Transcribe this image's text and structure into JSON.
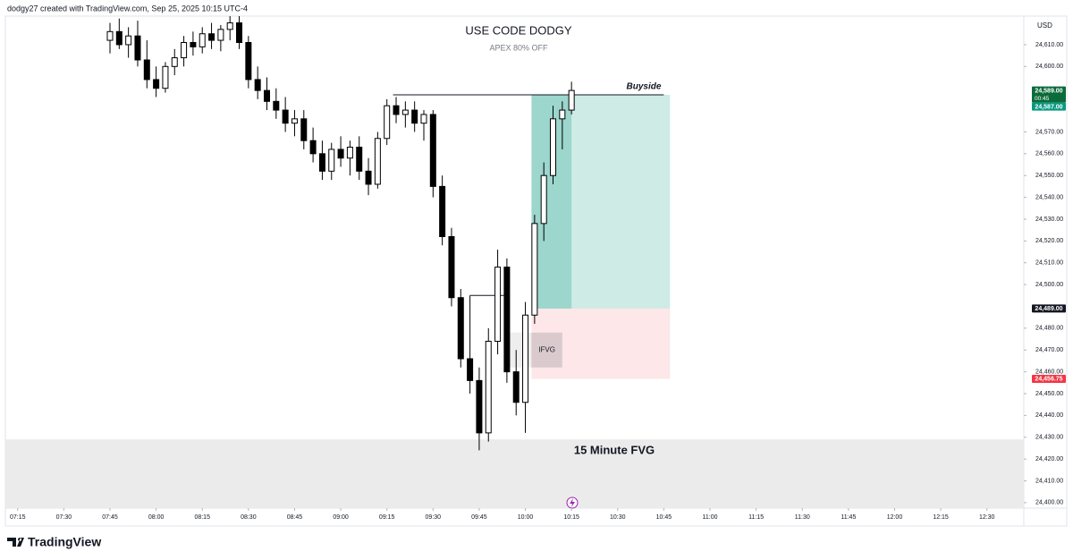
{
  "header": "dodgy27 created with TradingView.com, Sep 25, 2025 10:15 UTC-4",
  "footer": "TradingView",
  "chart_data": {
    "type": "candlestick",
    "title": "USE CODE DODGY",
    "subtitle": "APEX 80% OFF",
    "currency": "USD",
    "up_color": "#ffffff",
    "down_color": "#000000",
    "x": [
      "07:45",
      "07:48",
      "07:51",
      "07:54",
      "07:57",
      "08:00",
      "08:03",
      "08:06",
      "08:09",
      "08:12",
      "08:15",
      "08:18",
      "08:21",
      "08:24",
      "08:27",
      "08:30",
      "08:33",
      "08:36",
      "08:39",
      "08:42",
      "08:45",
      "08:48",
      "08:51",
      "08:54",
      "08:57",
      "09:00",
      "09:03",
      "09:06",
      "09:09",
      "09:12",
      "09:15",
      "09:18",
      "09:21",
      "09:24",
      "09:27",
      "09:30",
      "09:33",
      "09:36",
      "09:39",
      "09:42",
      "09:45",
      "09:48",
      "09:51",
      "09:54",
      "09:57",
      "10:00",
      "10:03",
      "10:06",
      "10:09",
      "10:12",
      "10:15"
    ],
    "open": [
      24612,
      24616,
      24610,
      24614,
      24603,
      24594,
      24590,
      24600,
      24604,
      24611,
      24609,
      24615,
      24612,
      24617,
      24620,
      24611,
      24594,
      24589,
      24584,
      24580,
      24574,
      24576,
      24566,
      24560,
      24552,
      24562,
      24558,
      24563,
      24552,
      24546,
      24567,
      24582,
      24578,
      24580,
      24574,
      24578,
      24545,
      24522,
      24494,
      24466,
      24456,
      24432,
      24474,
      24508,
      24460,
      24446,
      24486,
      24528,
      24550,
      24576,
      24580
    ],
    "high": [
      24620,
      24622,
      24618,
      24621,
      24612,
      24600,
      24602,
      24608,
      24614,
      24616,
      24618,
      24620,
      24619,
      24624,
      24624,
      24614,
      24600,
      24595,
      24590,
      24586,
      24580,
      24580,
      24572,
      24566,
      24565,
      24568,
      24566,
      24568,
      24558,
      24570,
      24585,
      24586,
      24584,
      24584,
      24580,
      24580,
      24550,
      24526,
      24498,
      24495,
      24462,
      24480,
      24516,
      24512,
      24470,
      24492,
      24532,
      24556,
      24582,
      24584,
      24593
    ],
    "low": [
      24606,
      24608,
      24604,
      24600,
      24590,
      24586,
      24588,
      24596,
      24600,
      24605,
      24606,
      24608,
      24607,
      24612,
      24608,
      24590,
      24585,
      24580,
      24576,
      24570,
      24568,
      24562,
      24556,
      24548,
      24548,
      24554,
      24550,
      24548,
      24541,
      24544,
      24564,
      24574,
      24572,
      24570,
      24566,
      24540,
      24518,
      24490,
      24462,
      24450,
      24424,
      24428,
      24468,
      24455,
      24440,
      24432,
      24482,
      24520,
      24546,
      24562,
      24578
    ],
    "close": [
      24616,
      24610,
      24614,
      24603,
      24594,
      24590,
      24600,
      24604,
      24611,
      24609,
      24615,
      24612,
      24617,
      24620,
      24611,
      24594,
      24589,
      24584,
      24580,
      24574,
      24576,
      24566,
      24560,
      24552,
      24562,
      24558,
      24563,
      24552,
      24546,
      24567,
      24582,
      24578,
      24580,
      24574,
      24578,
      24545,
      24522,
      24494,
      24466,
      24456,
      24432,
      24474,
      24508,
      24460,
      24446,
      24486,
      24528,
      24550,
      24576,
      24580,
      24589
    ],
    "xlim": [
      "07:11",
      "12:42"
    ],
    "xticks": [
      "07:15",
      "07:30",
      "07:45",
      "08:00",
      "08:15",
      "08:30",
      "08:45",
      "09:00",
      "09:15",
      "09:30",
      "09:45",
      "10:00",
      "10:15",
      "10:30",
      "10:45",
      "11:00",
      "11:15",
      "11:30",
      "11:45",
      "12:00",
      "12:15",
      "12:30"
    ],
    "ylim": [
      24397.5,
      24623.1
    ],
    "yticks": [
      {
        "value": 24400,
        "label": "24,400.00"
      },
      {
        "value": 24410,
        "label": "24,410.00"
      },
      {
        "value": 24420,
        "label": "24,420.00"
      },
      {
        "value": 24430,
        "label": "24,430.00"
      },
      {
        "value": 24440,
        "label": "24,440.00"
      },
      {
        "value": 24450,
        "label": "24,450.00"
      },
      {
        "value": 24460,
        "label": "24,460.00"
      },
      {
        "value": 24470,
        "label": "24,470.00"
      },
      {
        "value": 24480,
        "label": "24,480.00"
      },
      {
        "value": 24500,
        "label": "24,500.00"
      },
      {
        "value": 24510,
        "label": "24,510.00"
      },
      {
        "value": 24520,
        "label": "24,520.00"
      },
      {
        "value": 24530,
        "label": "24,530.00"
      },
      {
        "value": 24540,
        "label": "24,540.00"
      },
      {
        "value": 24550,
        "label": "24,550.00"
      },
      {
        "value": 24560,
        "label": "24,560.00"
      },
      {
        "value": 24570,
        "label": "24,570.00"
      },
      {
        "value": 24600,
        "label": "24,600.00"
      },
      {
        "value": 24610,
        "label": "24,610.00"
      }
    ],
    "price_labels": [
      {
        "value": 24589,
        "label": "24,589.00",
        "sub": "00:45",
        "color": "#0b6b3a"
      },
      {
        "value": 24587,
        "label": "24,587.00",
        "color": "#089981"
      },
      {
        "value": 24489,
        "label": "24,489.00",
        "color": "#131722"
      },
      {
        "value": 24456.75,
        "label": "24,456.75",
        "color": "#f23645"
      }
    ],
    "position": {
      "entry": 24489,
      "target": 24587,
      "stop": 24456.75,
      "start": "10:02",
      "now": "10:15",
      "end": "10:47",
      "target_color": "#089981",
      "stop_color": "#f23645"
    },
    "buyside": {
      "label": "Buyside",
      "price": 24587,
      "start": "09:17",
      "end": "10:45"
    },
    "ifvg": {
      "label": "IFVG",
      "top": 24478,
      "bottom": 24462,
      "start": "09:54",
      "end": "10:12"
    },
    "level": {
      "price": 24495,
      "start": "09:42",
      "end": "09:53"
    },
    "fvg_zone": {
      "label": "15 Minute FVG",
      "top": 24429,
      "bottom": 24397.5,
      "color": "#ebebeb"
    }
  }
}
